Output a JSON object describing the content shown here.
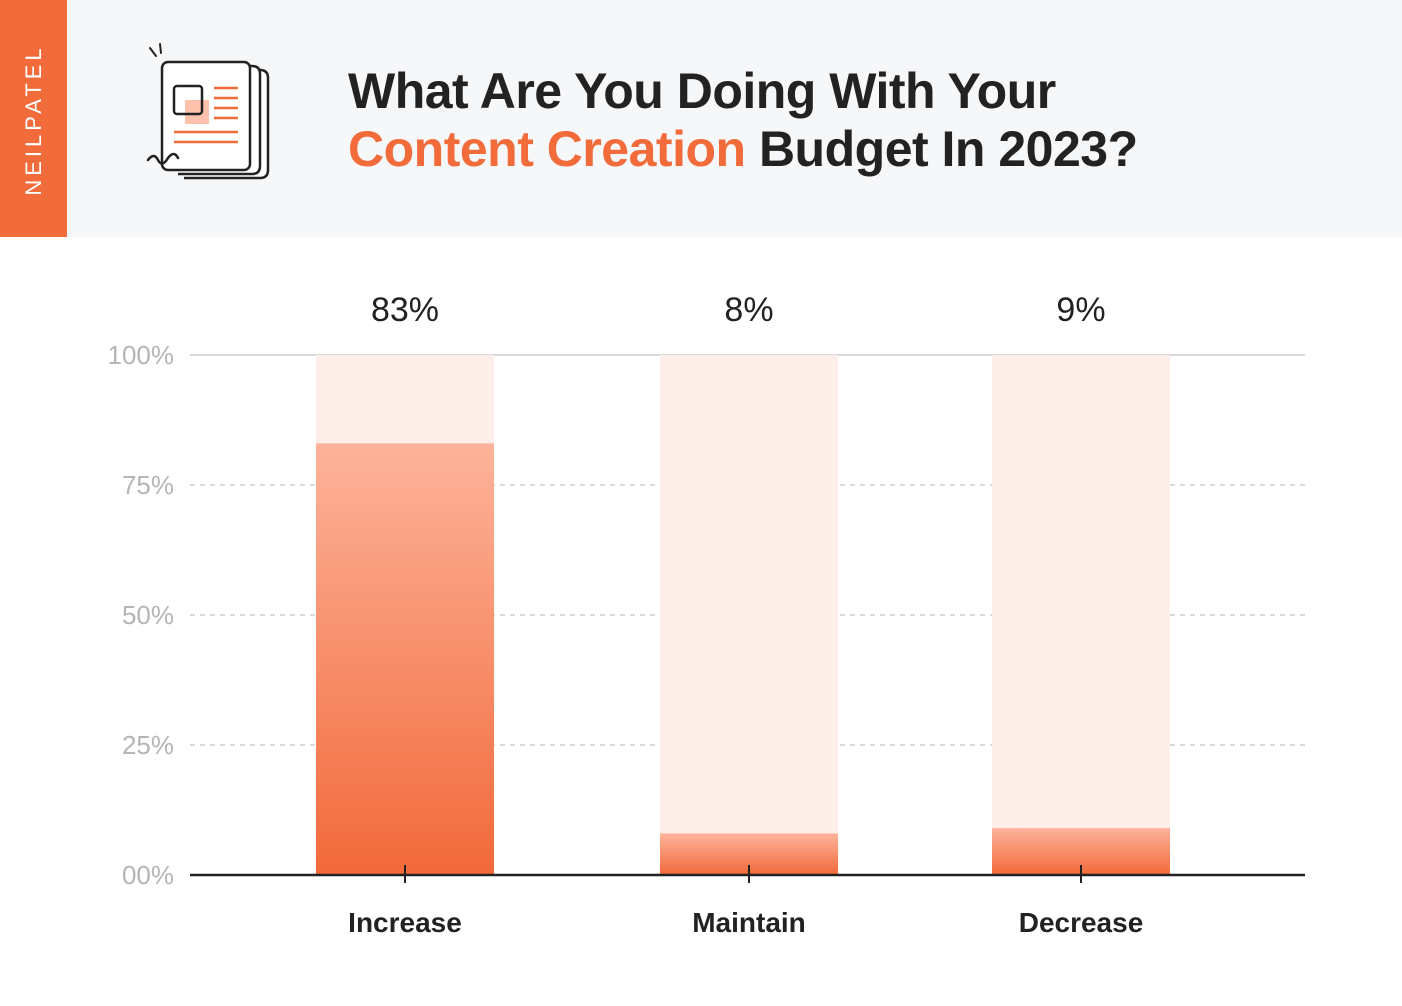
{
  "brand": {
    "name": "NEILPATEL",
    "accent_color": "#f26b3a"
  },
  "header": {
    "icon": "newspaper-icon",
    "title_line1": "What Are You Doing With Your",
    "title_accent": "Content Creation",
    "title_rest": "Budget In 2023?"
  },
  "chart_data": {
    "type": "bar",
    "title": "What Are You Doing With Your Content Creation Budget In 2023?",
    "categories": [
      "Increase",
      "Maintain",
      "Decrease"
    ],
    "values": [
      83,
      8,
      9
    ],
    "value_labels": [
      "83%",
      "8%",
      "9%"
    ],
    "ylim": [
      0,
      100
    ],
    "yticks": [
      0,
      25,
      50,
      75,
      100
    ],
    "ytick_labels": [
      "00%",
      "25%",
      "50%",
      "75%",
      "100%"
    ],
    "grid": true,
    "colors": {
      "bar_top": "#fdb39a",
      "bar_bottom": "#f2693a",
      "track": "#fdeee9",
      "axis": "#222222",
      "grid": "#d9d9d9",
      "tick_label": "#b5b5b5"
    }
  }
}
